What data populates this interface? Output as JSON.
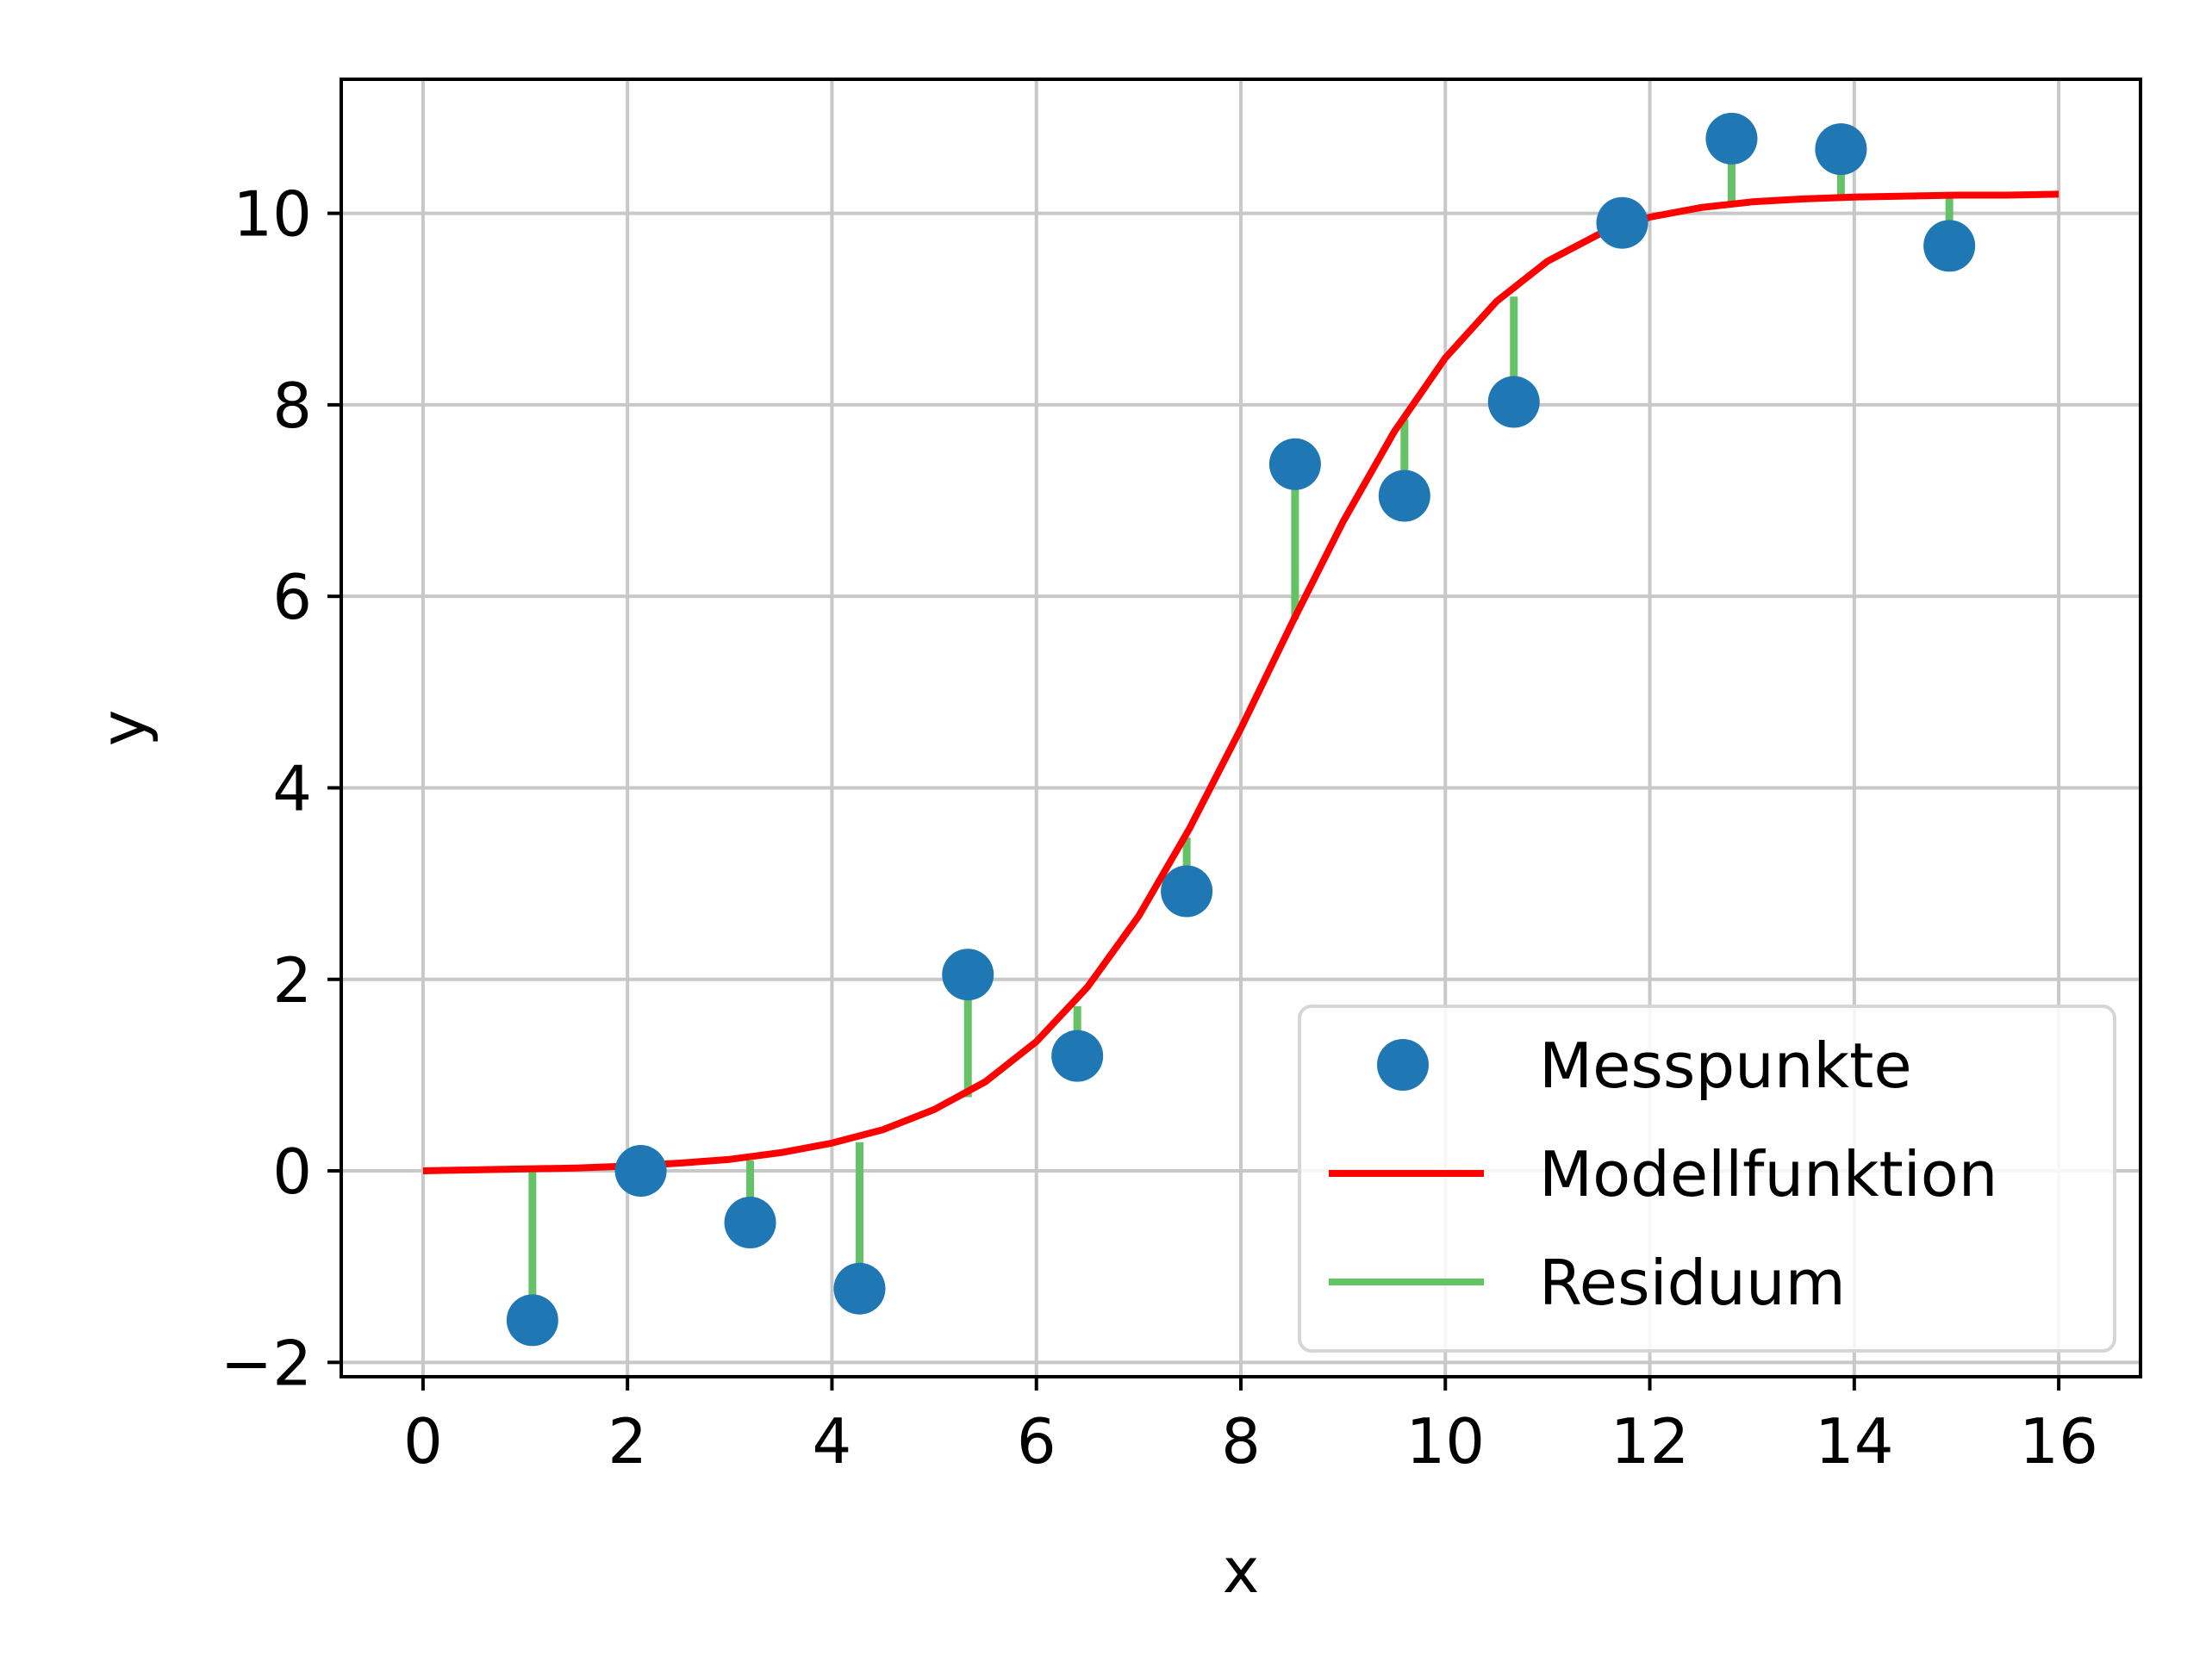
{
  "chart_data": {
    "type": "scatter",
    "title": "",
    "xlabel": "x",
    "ylabel": "y",
    "xlim": [
      -0.8,
      16.8
    ],
    "ylim": [
      -2.15,
      11.4
    ],
    "xticks": [
      0,
      2,
      4,
      6,
      8,
      10,
      12,
      14,
      16
    ],
    "yticks": [
      -2,
      0,
      2,
      4,
      6,
      8,
      10
    ],
    "ytick_labels": [
      "−2",
      "0",
      "2",
      "4",
      "6",
      "8",
      "10"
    ],
    "grid": true,
    "legend_position": "lower-right",
    "colors": {
      "points": "#1f77b4",
      "model": "#ff0000",
      "residual": "#66c266",
      "grid": "#c8c8c8"
    },
    "series": [
      {
        "name": "Messpunkte",
        "kind": "points",
        "x": [
          1.07,
          2.13,
          3.2,
          4.27,
          5.33,
          6.4,
          7.47,
          8.53,
          9.6,
          10.67,
          11.73,
          12.8,
          13.87,
          14.93
        ],
        "y": [
          -1.56,
          0.0,
          -0.54,
          -1.23,
          2.05,
          1.2,
          2.92,
          7.38,
          7.05,
          8.03,
          9.9,
          10.78,
          10.67,
          9.66
        ]
      },
      {
        "name": "Modellfunktion",
        "kind": "line",
        "x": [
          0,
          0.5,
          1,
          1.5,
          2,
          2.5,
          3,
          3.5,
          4,
          4.5,
          5,
          5.5,
          6,
          6.5,
          7,
          7.5,
          8,
          8.5,
          9,
          9.5,
          10,
          10.5,
          11,
          11.5,
          12,
          12.5,
          13,
          13.5,
          14,
          14.5,
          15,
          15.5,
          16
        ],
        "y": [
          0.0,
          0.01,
          0.02,
          0.03,
          0.05,
          0.08,
          0.12,
          0.19,
          0.29,
          0.43,
          0.64,
          0.93,
          1.35,
          1.92,
          2.66,
          3.58,
          4.62,
          5.72,
          6.78,
          7.72,
          8.49,
          9.08,
          9.5,
          9.78,
          9.96,
          10.06,
          10.12,
          10.15,
          10.17,
          10.18,
          10.19,
          10.19,
          10.2
        ]
      },
      {
        "name": "Residuum",
        "kind": "residual",
        "from_x": [
          1.07,
          2.13,
          3.2,
          4.27,
          5.33,
          6.4,
          7.47,
          8.53,
          9.6,
          10.67,
          11.73,
          12.8,
          13.87,
          14.93
        ],
        "from_y": [
          -1.56,
          0.0,
          -0.54,
          -1.23,
          2.05,
          1.2,
          2.92,
          7.38,
          7.05,
          8.03,
          9.9,
          10.78,
          10.67,
          9.66
        ],
        "to_y": [
          0.02,
          0.05,
          0.11,
          0.3,
          0.77,
          1.72,
          3.48,
          5.76,
          7.85,
          9.13,
          9.84,
          10.1,
          10.16,
          10.19
        ]
      }
    ]
  }
}
